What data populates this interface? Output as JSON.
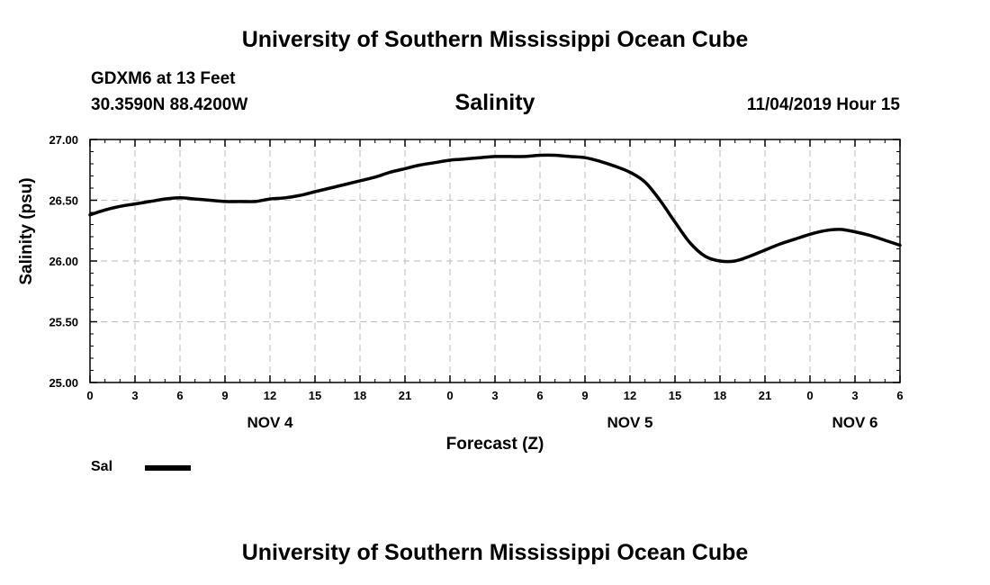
{
  "header": {
    "title": "University of Southern Mississippi Ocean Cube",
    "station": "GDXM6 at 13 Feet",
    "coords": "30.3590N 88.4200W",
    "variable": "Salinity",
    "datetime": "11/04/2019 Hour 15"
  },
  "footer": {
    "title": "University of Southern Mississippi Ocean Cube"
  },
  "colors": {
    "line": "#000000",
    "grid": "#bbbbbb",
    "axis": "#000000"
  },
  "chart_data": {
    "type": "line",
    "title": "Salinity",
    "xlabel": "Forecast (Z)",
    "ylabel": "Salinity (psu)",
    "xlim": [
      0,
      54
    ],
    "ylim": [
      25.0,
      27.0
    ],
    "x_tick_values": [
      0,
      3,
      6,
      9,
      12,
      15,
      18,
      21,
      24,
      27,
      30,
      33,
      36,
      39,
      42,
      45,
      48,
      51,
      54
    ],
    "x_tick_labels": [
      "0",
      "3",
      "6",
      "9",
      "12",
      "15",
      "18",
      "21",
      "0",
      "3",
      "6",
      "9",
      "12",
      "15",
      "18",
      "21",
      "0",
      "3",
      "6"
    ],
    "y_tick_values": [
      25.0,
      25.5,
      26.0,
      26.5,
      27.0
    ],
    "y_tick_labels": [
      "25.00",
      "25.50",
      "26.00",
      "26.50",
      "27.00"
    ],
    "date_labels": [
      {
        "x": 12,
        "label": "NOV 4"
      },
      {
        "x": 36,
        "label": "NOV 5"
      },
      {
        "x": 51,
        "label": "NOV 6"
      }
    ],
    "grid": true,
    "legend": {
      "position": "bottom-left",
      "entries": [
        "Sal"
      ]
    },
    "series": [
      {
        "name": "Sal",
        "x": [
          0,
          1,
          2,
          3,
          4,
          5,
          6,
          7,
          8,
          9,
          10,
          11,
          12,
          13,
          14,
          15,
          16,
          17,
          18,
          19,
          20,
          21,
          22,
          23,
          24,
          25,
          26,
          27,
          28,
          29,
          30,
          31,
          32,
          33,
          34,
          35,
          36,
          37,
          38,
          39,
          40,
          41,
          42,
          43,
          44,
          45,
          46,
          47,
          48,
          49,
          50,
          51,
          52,
          53,
          54
        ],
        "values": [
          26.38,
          26.42,
          26.45,
          26.47,
          26.49,
          26.51,
          26.52,
          26.51,
          26.5,
          26.49,
          26.49,
          26.49,
          26.51,
          26.52,
          26.54,
          26.57,
          26.6,
          26.63,
          26.66,
          26.69,
          26.73,
          26.76,
          26.79,
          26.81,
          26.83,
          26.84,
          26.85,
          26.86,
          26.86,
          26.86,
          26.87,
          26.87,
          26.86,
          26.85,
          26.82,
          26.78,
          26.73,
          26.65,
          26.5,
          26.32,
          26.15,
          26.04,
          26.0,
          26.0,
          26.04,
          26.09,
          26.14,
          26.18,
          26.22,
          26.25,
          26.26,
          26.24,
          26.21,
          26.17,
          26.13
        ]
      }
    ]
  }
}
